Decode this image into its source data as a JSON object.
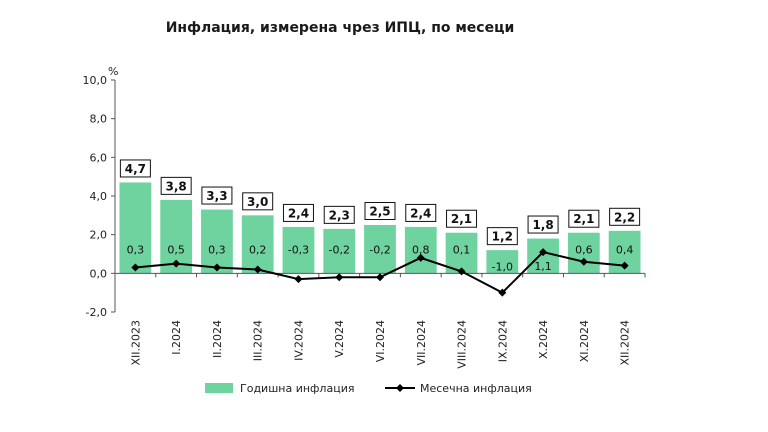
{
  "chart_data": {
    "type": "bar",
    "title": "Инфлация, измерена чрез ИПЦ, по месеци",
    "ylabel": "%",
    "ylim": [
      -2,
      10
    ],
    "yticks": [
      "-2,0",
      "0,0",
      "2,0",
      "4,0",
      "6,0",
      "8,0",
      "10,0"
    ],
    "categories": [
      "XII.2023",
      "I.2024",
      "II.2024",
      "III.2024",
      "IV.2024",
      "V.2024",
      "VI.2024",
      "VII.2024",
      "VIII.2024",
      "IX.2024",
      "X.2024",
      "XI.2024",
      "XII.2024"
    ],
    "series": [
      {
        "name": "Годишна инфлация",
        "type": "bar",
        "color": "#6fd3a0",
        "values": [
          4.7,
          3.8,
          3.3,
          3.0,
          2.4,
          2.3,
          2.5,
          2.4,
          2.1,
          1.2,
          1.8,
          2.1,
          2.2
        ],
        "labels": [
          "4,7",
          "3,8",
          "3,3",
          "3,0",
          "2,4",
          "2,3",
          "2,5",
          "2,4",
          "2,1",
          "1,2",
          "1,8",
          "2,1",
          "2,2"
        ]
      },
      {
        "name": "Месечна инфлация",
        "type": "line",
        "color": "#000000",
        "values": [
          0.3,
          0.5,
          0.3,
          0.2,
          -0.3,
          -0.2,
          -0.2,
          0.8,
          0.1,
          -1.0,
          1.1,
          0.6,
          0.4
        ],
        "labels": [
          "0,3",
          "0,5",
          "0,3",
          "0,2",
          "-0,3",
          "-0,2",
          "-0,2",
          "0,8",
          "0,1",
          "-1,0",
          "1,1",
          "0,6",
          "0,4"
        ]
      }
    ],
    "legend": "bottom",
    "grid": false
  }
}
